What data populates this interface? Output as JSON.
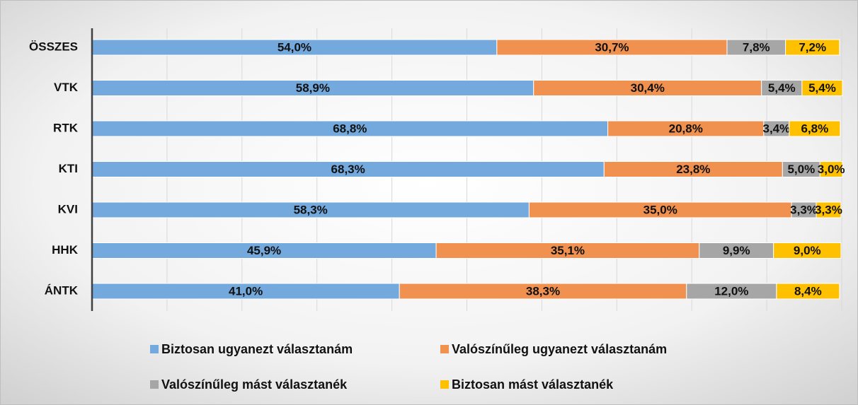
{
  "chart_data": {
    "type": "stacked-bar-horizontal",
    "categories": [
      "ÖSSZES",
      "VTK",
      "RTK",
      "KTI",
      "KVI",
      "HHK",
      "ÁNTK"
    ],
    "series": [
      {
        "name": "Biztosan ugyanezt választanám",
        "color": "#74a9dd",
        "values": [
          54.0,
          58.9,
          68.8,
          68.3,
          58.3,
          45.9,
          41.0
        ],
        "value_labels": [
          "54,0%",
          "58,9%",
          "68,8%",
          "68,3%",
          "58,3%",
          "45,9%",
          "41,0%"
        ]
      },
      {
        "name": "Valószínűleg ugyanezt választanám",
        "color": "#f0914f",
        "values": [
          30.7,
          30.4,
          20.8,
          23.8,
          35.0,
          35.1,
          38.3
        ],
        "value_labels": [
          "30,7%",
          "30,4%",
          "20,8%",
          "23,8%",
          "35,0%",
          "35,1%",
          "38,3%"
        ]
      },
      {
        "name": "Valószínűleg mást választanék",
        "color": "#a6a6a6",
        "values": [
          7.8,
          5.4,
          3.4,
          5.0,
          3.3,
          9.9,
          12.0
        ],
        "value_labels": [
          "7,8%",
          "5,4%",
          "3,4%",
          "5,0%",
          "3,3%",
          "9,9%",
          "12,0%"
        ]
      },
      {
        "name": "Biztosan mást választanék",
        "color": "#ffc000",
        "values": [
          7.2,
          5.4,
          6.8,
          3.0,
          3.3,
          9.0,
          8.4
        ],
        "value_labels": [
          "7,2%",
          "5,4%",
          "6,8%",
          "3,0%",
          "3,3%",
          "9,0%",
          "8,4%"
        ]
      }
    ],
    "xlim": [
      0,
      100
    ],
    "xticks": [
      0,
      10,
      20,
      30,
      40,
      50,
      60,
      70,
      80,
      90,
      100
    ],
    "grid": true
  }
}
